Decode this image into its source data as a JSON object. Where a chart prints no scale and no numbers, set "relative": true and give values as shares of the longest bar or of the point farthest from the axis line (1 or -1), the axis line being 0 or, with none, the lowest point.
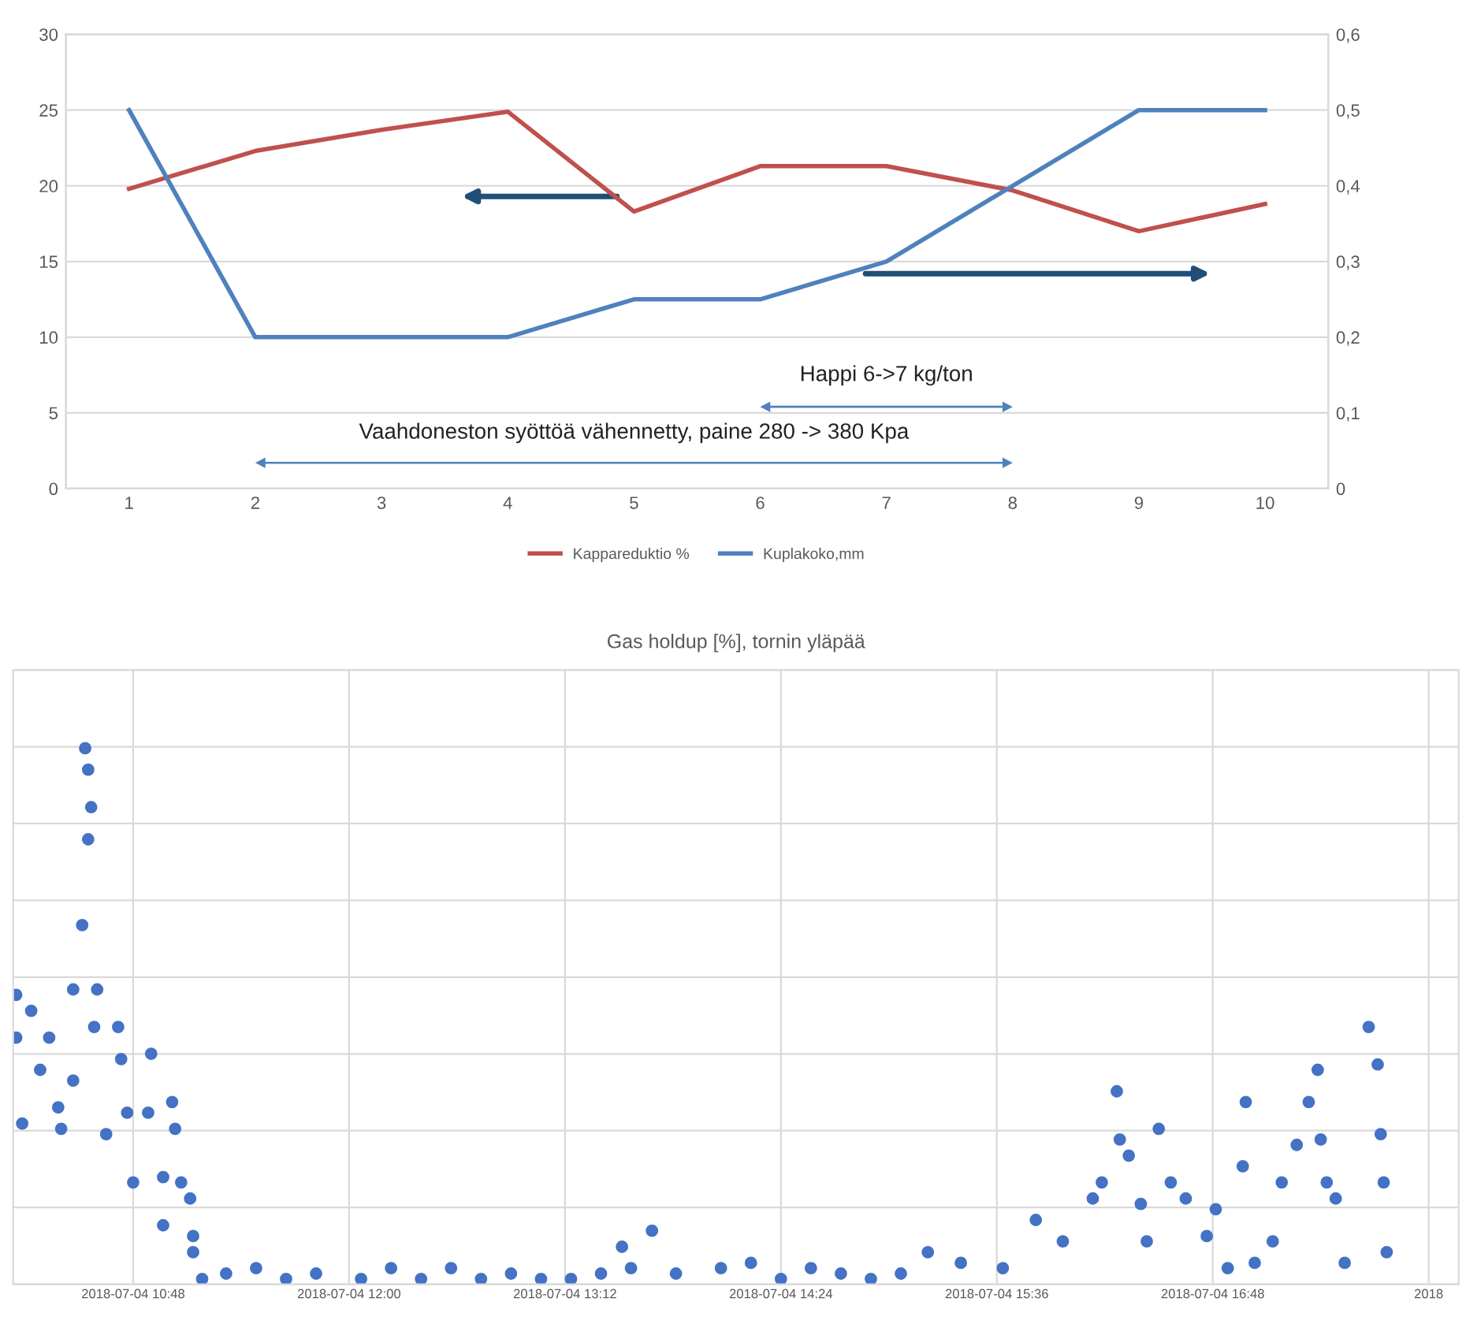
{
  "chart_data": [
    {
      "type": "line",
      "categories": [
        "1",
        "2",
        "3",
        "4",
        "5",
        "6",
        "7",
        "8",
        "9",
        "10"
      ],
      "series": [
        {
          "name": "Kappareduktio %",
          "color": "#c0504d",
          "values": [
            19.8,
            22.3,
            23.7,
            24.9,
            18.3,
            21.3,
            21.3,
            19.7,
            17.0,
            18.8
          ]
        },
        {
          "name": "Kuplakoko,mm",
          "color": "#4f81bd",
          "axis": "y2",
          "values": [
            0.5,
            0.2,
            0.2,
            0.2,
            0.25,
            0.25,
            0.3,
            0.4,
            0.5,
            0.5
          ]
        }
      ],
      "ylim": [
        0,
        30
      ],
      "yticks": [
        0,
        5,
        10,
        15,
        20,
        25,
        30
      ],
      "y2lim": [
        0,
        0.6
      ],
      "y2ticks": [
        0,
        {
          "value": 0.1,
          "label": "0,1"
        },
        {
          "value": 0.2,
          "label": "0,2"
        },
        {
          "value": 0.3,
          "label": "0,3"
        },
        {
          "value": 0.4,
          "label": "0,4"
        },
        {
          "value": 0.5,
          "label": "0,5"
        },
        {
          "value": 0.6,
          "label": "0,6"
        }
      ],
      "grid": "y",
      "legend": "bottom",
      "line_style": "solid",
      "annotations": [
        "Happi 6->7 kg/ton",
        "Vaahdoneston syöttöä vähennetty, paine 280 -> 380 Kpa"
      ]
    },
    {
      "type": "scatter",
      "title": "Gas holdup [%], tornin yläpää",
      "relative": true,
      "marker": "circle",
      "grid": true,
      "tick_labels": "x",
      "xlim": [
        "2018-07-04T10:08",
        "2018-07-04T18:10"
      ],
      "xticks": [
        {
          "value": "2018-07-04T10:48",
          "label": "2018-07-04 10:48"
        },
        {
          "value": "2018-07-04T12:00",
          "label": "2018-07-04 12:00"
        },
        {
          "value": "2018-07-04T13:12",
          "label": "2018-07-04 13:12"
        },
        {
          "value": "2018-07-04T14:24",
          "label": "2018-07-04 14:24"
        },
        {
          "value": "2018-07-04T15:36",
          "label": "2018-07-04 15:36"
        },
        {
          "value": "2018-07-04T16:48",
          "label": "2018-07-04 16:48"
        },
        {
          "value": "2018-07-04T18:00",
          "label": "2018"
        }
      ],
      "series": [
        {
          "color": "#4472c4",
          "x": [
            "2018-07-04T10:09",
            "2018-07-04T10:09",
            "2018-07-04T10:11",
            "2018-07-04T10:14",
            "2018-07-04T10:17",
            "2018-07-04T10:20",
            "2018-07-04T10:23",
            "2018-07-04T10:24",
            "2018-07-04T10:28",
            "2018-07-04T10:28",
            "2018-07-04T10:31",
            "2018-07-04T10:32",
            "2018-07-04T10:33",
            "2018-07-04T10:33",
            "2018-07-04T10:34",
            "2018-07-04T10:35",
            "2018-07-04T10:36",
            "2018-07-04T10:39",
            "2018-07-04T10:43",
            "2018-07-04T10:44",
            "2018-07-04T10:46",
            "2018-07-04T10:48",
            "2018-07-04T10:53",
            "2018-07-04T10:54",
            "2018-07-04T10:58",
            "2018-07-04T10:58",
            "2018-07-04T11:01",
            "2018-07-04T11:02",
            "2018-07-04T11:04",
            "2018-07-04T11:07",
            "2018-07-04T11:08",
            "2018-07-04T11:08",
            "2018-07-04T11:11",
            "2018-07-04T11:19",
            "2018-07-04T11:29",
            "2018-07-04T11:39",
            "2018-07-04T11:49",
            "2018-07-04T12:04",
            "2018-07-04T12:14",
            "2018-07-04T12:24",
            "2018-07-04T12:34",
            "2018-07-04T12:44",
            "2018-07-04T12:54",
            "2018-07-04T13:04",
            "2018-07-04T13:14",
            "2018-07-04T13:24",
            "2018-07-04T13:31",
            "2018-07-04T13:34",
            "2018-07-04T13:41",
            "2018-07-04T13:49",
            "2018-07-04T14:04",
            "2018-07-04T14:14",
            "2018-07-04T14:24",
            "2018-07-04T14:34",
            "2018-07-04T14:44",
            "2018-07-04T14:54",
            "2018-07-04T15:04",
            "2018-07-04T15:13",
            "2018-07-04T15:24",
            "2018-07-04T15:38",
            "2018-07-04T15:49",
            "2018-07-04T15:58",
            "2018-07-04T16:08",
            "2018-07-04T16:11",
            "2018-07-04T16:16",
            "2018-07-04T16:17",
            "2018-07-04T16:20",
            "2018-07-04T16:24",
            "2018-07-04T16:26",
            "2018-07-04T16:30",
            "2018-07-04T16:34",
            "2018-07-04T16:39",
            "2018-07-04T16:46",
            "2018-07-04T16:49",
            "2018-07-04T16:53",
            "2018-07-04T16:58",
            "2018-07-04T16:59",
            "2018-07-04T17:02",
            "2018-07-04T17:08",
            "2018-07-04T17:11",
            "2018-07-04T17:16",
            "2018-07-04T17:20",
            "2018-07-04T17:23",
            "2018-07-04T17:24",
            "2018-07-04T17:26",
            "2018-07-04T17:29",
            "2018-07-04T17:32",
            "2018-07-04T17:40",
            "2018-07-04T17:43",
            "2018-07-04T17:44",
            "2018-07-04T17:45",
            "2018-07-04T17:46"
          ],
          "values": [
            0.54,
            0.46,
            0.3,
            0.51,
            0.4,
            0.46,
            0.33,
            0.29,
            0.55,
            0.38,
            0.67,
            1.0,
            0.83,
            0.96,
            0.89,
            0.48,
            0.55,
            0.28,
            0.48,
            0.42,
            0.32,
            0.19,
            0.32,
            0.43,
            0.2,
            0.11,
            0.34,
            0.29,
            0.19,
            0.16,
            0.09,
            0.06,
            0.01,
            0.02,
            0.03,
            0.01,
            0.02,
            0.01,
            0.03,
            0.01,
            0.03,
            0.01,
            0.02,
            0.01,
            0.01,
            0.02,
            0.07,
            0.03,
            0.1,
            0.02,
            0.03,
            0.04,
            0.01,
            0.03,
            0.02,
            0.01,
            0.02,
            0.06,
            0.04,
            0.03,
            0.12,
            0.08,
            0.16,
            0.19,
            0.36,
            0.27,
            0.24,
            0.15,
            0.08,
            0.29,
            0.19,
            0.16,
            0.09,
            0.14,
            0.03,
            0.22,
            0.34,
            0.04,
            0.08,
            0.19,
            0.26,
            0.34,
            0.4,
            0.27,
            0.19,
            0.16,
            0.04,
            0.48,
            0.41,
            0.28,
            0.19,
            0.06
          ]
        }
      ]
    }
  ]
}
